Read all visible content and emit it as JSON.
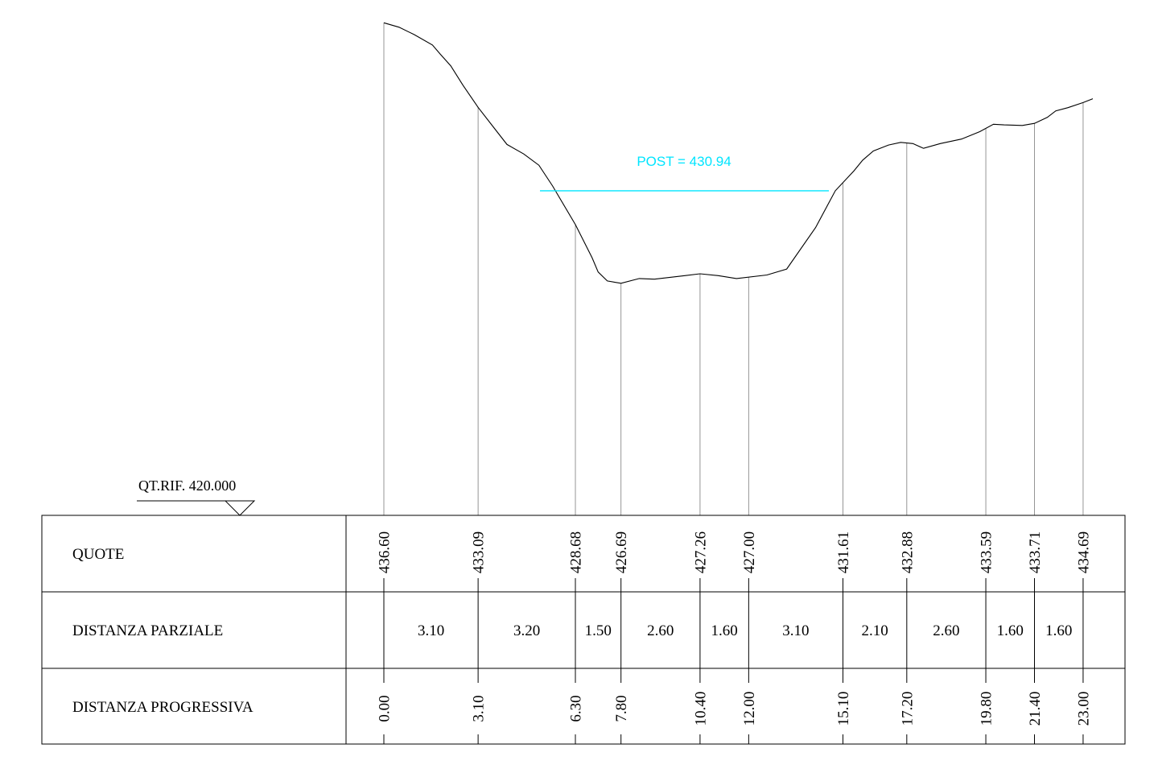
{
  "reference": {
    "label": "QT.RIF. 420.000",
    "elevation": 420.0
  },
  "water": {
    "label": "POST = 430.94",
    "elevation": 430.94,
    "color": "#00e5ff"
  },
  "table": {
    "row_quote": "QUOTE",
    "row_parziale": "DISTANZA PARZIALE",
    "row_progressiva": "DISTANZA PROGRESSIVA"
  },
  "stations": [
    {
      "prog": "0.00",
      "quota": "436.60"
    },
    {
      "prog": "3.10",
      "quota": "433.09"
    },
    {
      "prog": "6.30",
      "quota": "428.68"
    },
    {
      "prog": "7.80",
      "quota": "426.69"
    },
    {
      "prog": "10.40",
      "quota": "427.26"
    },
    {
      "prog": "12.00",
      "quota": "427.00"
    },
    {
      "prog": "15.10",
      "quota": "431.61"
    },
    {
      "prog": "17.20",
      "quota": "432.88"
    },
    {
      "prog": "19.80",
      "quota": "433.59"
    },
    {
      "prog": "21.40",
      "quota": "433.71"
    },
    {
      "prog": "23.00",
      "quota": "434.69"
    }
  ],
  "partial_distances": [
    "3.10",
    "3.20",
    "1.50",
    "2.60",
    "1.60",
    "3.10",
    "2.10",
    "2.60",
    "1.60",
    "1.60"
  ],
  "terrain_profile": [
    [
      0.0,
      436.6
    ],
    [
      0.5,
      436.45
    ],
    [
      1.0,
      436.2
    ],
    [
      1.6,
      435.85
    ],
    [
      1.85,
      435.55
    ],
    [
      2.2,
      435.15
    ],
    [
      2.6,
      434.5
    ],
    [
      3.1,
      433.75
    ],
    [
      3.6,
      433.09
    ],
    [
      4.05,
      432.5
    ],
    [
      4.6,
      432.18
    ],
    [
      5.1,
      431.8
    ],
    [
      5.55,
      431.1
    ],
    [
      6.3,
      429.8
    ],
    [
      6.85,
      428.68
    ],
    [
      7.05,
      428.2
    ],
    [
      7.35,
      427.9
    ],
    [
      7.8,
      427.82
    ],
    [
      8.4,
      427.98
    ],
    [
      8.9,
      427.96
    ],
    [
      9.9,
      428.08
    ],
    [
      10.4,
      428.14
    ],
    [
      11.0,
      428.08
    ],
    [
      11.6,
      427.98
    ],
    [
      12.6,
      428.1
    ],
    [
      13.25,
      428.3
    ],
    [
      14.2,
      429.7
    ],
    [
      14.85,
      430.94
    ],
    [
      15.46,
      431.61
    ],
    [
      15.75,
      431.97
    ],
    [
      16.1,
      432.28
    ],
    [
      16.6,
      432.48
    ],
    [
      17.0,
      432.57
    ],
    [
      17.4,
      432.53
    ],
    [
      17.75,
      432.37
    ],
    [
      18.3,
      432.53
    ],
    [
      19.0,
      432.68
    ],
    [
      19.6,
      432.93
    ],
    [
      20.05,
      433.18
    ],
    [
      20.4,
      433.16
    ],
    [
      21.0,
      433.14
    ],
    [
      21.4,
      433.21
    ],
    [
      21.82,
      433.41
    ],
    [
      22.1,
      433.63
    ],
    [
      22.5,
      433.74
    ],
    [
      23.0,
      433.91
    ],
    [
      23.32,
      434.04
    ]
  ]
}
